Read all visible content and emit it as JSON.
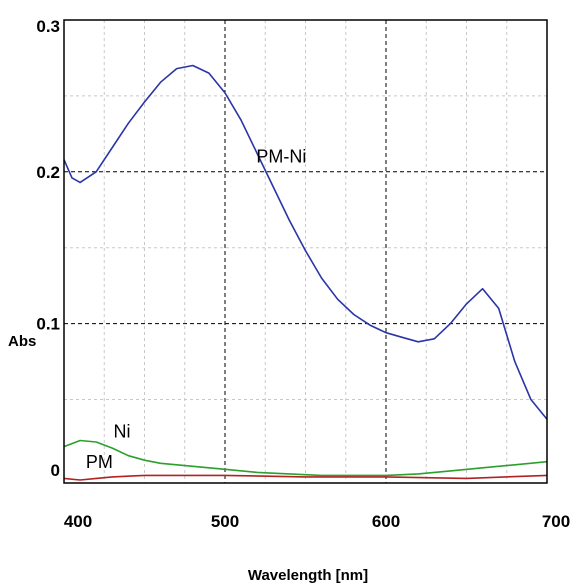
{
  "chart_data": {
    "type": "line",
    "title": "",
    "xlabel": "Wavelength [nm]",
    "ylabel": "Abs",
    "xlim": [
      400,
      700
    ],
    "ylim": [
      -0.005,
      0.3
    ],
    "x_ticks": [
      "400",
      "500",
      "600",
      "700"
    ],
    "y_ticks": [
      "0",
      "0.1",
      "0.2",
      "0.3"
    ],
    "grid": true,
    "series": [
      {
        "name": "PM-Ni",
        "color": "#2a35a8",
        "x": [
          400,
          405,
          410,
          420,
          430,
          440,
          450,
          460,
          470,
          480,
          490,
          500,
          510,
          520,
          530,
          540,
          550,
          560,
          570,
          580,
          590,
          600,
          610,
          620,
          630,
          640,
          650,
          660,
          670,
          680,
          690,
          700
        ],
        "y": [
          0.208,
          0.196,
          0.193,
          0.2,
          0.216,
          0.232,
          0.246,
          0.259,
          0.268,
          0.27,
          0.265,
          0.252,
          0.234,
          0.212,
          0.19,
          0.168,
          0.148,
          0.13,
          0.116,
          0.106,
          0.099,
          0.094,
          0.091,
          0.088,
          0.09,
          0.1,
          0.113,
          0.123,
          0.11,
          0.075,
          0.05,
          0.037
        ]
      },
      {
        "name": "Ni",
        "color": "#2ca02c",
        "x": [
          400,
          410,
          420,
          430,
          440,
          450,
          460,
          480,
          500,
          520,
          540,
          560,
          580,
          600,
          620,
          640,
          660,
          680,
          700
        ],
        "y": [
          0.019,
          0.023,
          0.022,
          0.018,
          0.013,
          0.01,
          0.008,
          0.006,
          0.004,
          0.002,
          0.001,
          0.0,
          0.0,
          0.0,
          0.001,
          0.003,
          0.005,
          0.007,
          0.009
        ]
      },
      {
        "name": "PM",
        "color": "#b22222",
        "x": [
          400,
          410,
          420,
          430,
          450,
          480,
          500,
          550,
          600,
          650,
          700
        ],
        "y": [
          -0.002,
          -0.003,
          -0.002,
          -0.001,
          0.0,
          0.0,
          0.0,
          -0.001,
          -0.001,
          -0.002,
          0.0
        ]
      }
    ],
    "annotations": [
      {
        "text": "PM-Ni",
        "x": 535,
        "y": 0.206
      },
      {
        "text": "Ni",
        "x": 436,
        "y": 0.025
      },
      {
        "text": "PM",
        "x": 422,
        "y": 0.005
      }
    ]
  }
}
